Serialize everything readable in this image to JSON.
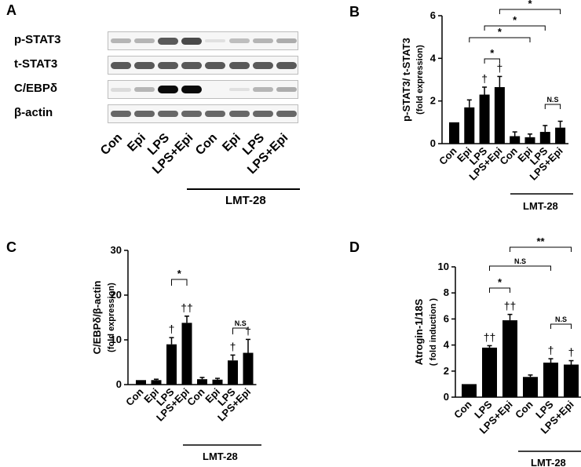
{
  "panels": {
    "A": "A",
    "B": "B",
    "C": "C",
    "D": "D"
  },
  "blot": {
    "rows": [
      "p-STAT3",
      "t-STAT3",
      "C/EBPδ",
      "β-actin"
    ],
    "lanes": [
      "Con",
      "Epi",
      "LPS",
      "LPS+Epi",
      "Con",
      "Epi",
      "LPS",
      "LPS+Epi"
    ],
    "group_label": "LMT-28",
    "band_intensity": {
      "p-STAT3": [
        0.35,
        0.35,
        0.75,
        0.8,
        0.05,
        0.3,
        0.35,
        0.4
      ],
      "t-STAT3": [
        0.75,
        0.75,
        0.75,
        0.75,
        0.75,
        0.75,
        0.75,
        0.75
      ],
      "C/EBPδ": [
        0.1,
        0.35,
        1.0,
        1.0,
        0.0,
        0.05,
        0.35,
        0.4
      ],
      "β-actin": [
        0.7,
        0.7,
        0.7,
        0.7,
        0.7,
        0.7,
        0.7,
        0.7
      ]
    }
  },
  "chart_data": [
    {
      "id": "B",
      "type": "bar",
      "ylabel": "p-STAT3/ t-STAT3",
      "ylabel2": "(fold expression)",
      "ylim": [
        0,
        6
      ],
      "yticks": [
        "0",
        "2",
        "4",
        "6"
      ],
      "categories": [
        "Con",
        "Epi",
        "LPS",
        "LPS+Epi",
        "Con",
        "Epi",
        "LPS",
        "LPS+Epi"
      ],
      "values": [
        1.0,
        1.7,
        2.3,
        2.65,
        0.35,
        0.3,
        0.55,
        0.75
      ],
      "errors": [
        0,
        0.35,
        0.35,
        0.5,
        0.2,
        0.15,
        0.3,
        0.3
      ],
      "marks": [
        "",
        "",
        "†",
        "†",
        "",
        "",
        "",
        ""
      ],
      "group_label": "LMT-28",
      "annotations": [
        "*",
        "*",
        "*",
        "*",
        "N.S"
      ]
    },
    {
      "id": "C",
      "type": "bar",
      "ylabel": "C/EBPδ/β-actin",
      "ylabel2": "(fold expression)",
      "ylim": [
        0,
        30
      ],
      "yticks": [
        "0",
        "10",
        "20",
        "30"
      ],
      "categories": [
        "Con",
        "Epi",
        "LPS",
        "LPS+Epi",
        "Con",
        "Epi",
        "LPS",
        "LPS+Epi"
      ],
      "values": [
        1.0,
        1.0,
        9.0,
        13.8,
        1.2,
        1.1,
        5.4,
        7.1
      ],
      "errors": [
        0,
        0.2,
        1.5,
        1.5,
        0.4,
        0.3,
        1.2,
        3.0
      ],
      "marks": [
        "",
        "",
        "†",
        "††",
        "",
        "",
        "†",
        "†"
      ],
      "group_label": "LMT-28",
      "annotations": [
        "*",
        "N.S"
      ]
    },
    {
      "id": "D",
      "type": "bar",
      "ylabel": "Atrogin-1/18S",
      "ylabel2": "( fold induction )",
      "ylim": [
        0,
        10
      ],
      "yticks": [
        "0",
        "2",
        "4",
        "6",
        "8",
        "10"
      ],
      "categories": [
        "Con",
        "LPS",
        "LPS+Epi",
        "Con",
        "LPS",
        "LPS+Epi"
      ],
      "values": [
        1.0,
        3.8,
        5.9,
        1.55,
        2.65,
        2.5
      ],
      "errors": [
        0,
        0.15,
        0.45,
        0.15,
        0.3,
        0.3
      ],
      "marks": [
        "",
        "††",
        "††",
        "",
        "†",
        "†"
      ],
      "group_label": "LMT-28",
      "annotations": [
        "*",
        "N.S",
        "**",
        "N.S"
      ]
    }
  ]
}
